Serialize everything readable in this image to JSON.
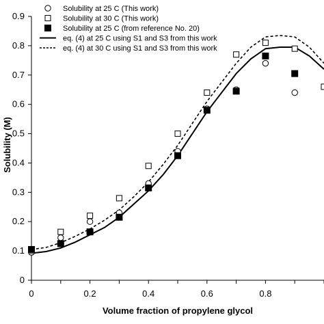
{
  "chart_data": {
    "type": "scatter",
    "xlabel": "Volume fraction of propylene glycol",
    "ylabel": "Solubility (M)",
    "xlim": [
      0,
      1
    ],
    "ylim": [
      0,
      0.9
    ],
    "x_ticks": [
      "0",
      "0.2",
      "0.4",
      "0.6",
      "0.8"
    ],
    "y_ticks": [
      "0",
      "0.1",
      "0.2",
      "0.3",
      "0.4",
      "0.5",
      "0.6",
      "0.7",
      "0.8",
      "0.9"
    ],
    "grid": false,
    "legend_position": "top-left",
    "series": [
      {
        "name": "Solubility at 25 C (This work)",
        "marker": "open-circle",
        "color": "#000000",
        "x": [
          0,
          0.1,
          0.2,
          0.3,
          0.4,
          0.5,
          0.6,
          0.7,
          0.8,
          0.9
        ],
        "y": [
          0.095,
          0.145,
          0.2,
          0.23,
          0.33,
          0.44,
          0.585,
          0.65,
          0.74,
          0.64
        ]
      },
      {
        "name": "Solubility at 30 C (This work)",
        "marker": "open-square",
        "color": "#000000",
        "x": [
          0,
          0.1,
          0.2,
          0.3,
          0.4,
          0.5,
          0.6,
          0.7,
          0.8,
          0.9,
          1.0
        ],
        "y": [
          0.1,
          0.165,
          0.22,
          0.28,
          0.39,
          0.5,
          0.64,
          0.77,
          0.81,
          0.79,
          0.66
        ]
      },
      {
        "name": "Solubility at 25 C (from reference No. 20)",
        "marker": "filled-square",
        "color": "#000000",
        "x": [
          0,
          0.1,
          0.2,
          0.3,
          0.4,
          0.5,
          0.6,
          0.7,
          0.8,
          0.9
        ],
        "y": [
          0.105,
          0.125,
          0.165,
          0.215,
          0.315,
          0.425,
          0.58,
          0.645,
          0.765,
          0.705
        ]
      },
      {
        "name": "eq. (4) at 25 C using S1 and S3 from this work",
        "style": "solid-line",
        "color": "#000000",
        "x": [
          0,
          0.05,
          0.1,
          0.15,
          0.2,
          0.25,
          0.3,
          0.35,
          0.4,
          0.45,
          0.5,
          0.55,
          0.6,
          0.65,
          0.7,
          0.75,
          0.8,
          0.85,
          0.9,
          0.95,
          1.0
        ],
        "y": [
          0.092,
          0.098,
          0.11,
          0.13,
          0.155,
          0.18,
          0.215,
          0.26,
          0.305,
          0.36,
          0.425,
          0.5,
          0.575,
          0.64,
          0.705,
          0.755,
          0.79,
          0.795,
          0.795,
          0.765,
          0.72
        ]
      },
      {
        "name": "eq. (4) at 30 C using S1 and S3 from this work",
        "style": "dashed-line",
        "color": "#000000",
        "x": [
          0,
          0.05,
          0.1,
          0.15,
          0.2,
          0.25,
          0.3,
          0.35,
          0.4,
          0.45,
          0.5,
          0.55,
          0.6,
          0.65,
          0.7,
          0.75,
          0.8,
          0.85,
          0.9,
          0.95,
          1.0
        ],
        "y": [
          0.105,
          0.112,
          0.128,
          0.15,
          0.175,
          0.205,
          0.24,
          0.285,
          0.335,
          0.395,
          0.46,
          0.535,
          0.61,
          0.675,
          0.74,
          0.795,
          0.83,
          0.835,
          0.83,
          0.795,
          0.74
        ]
      }
    ]
  }
}
